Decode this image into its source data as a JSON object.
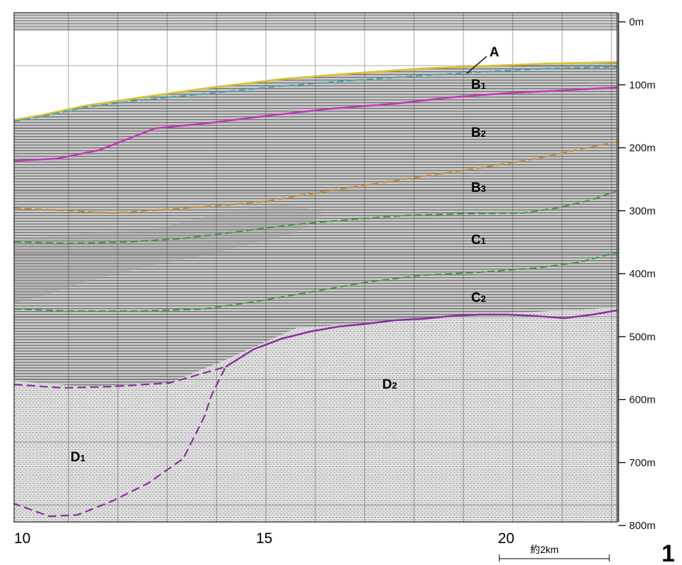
{
  "depth_axis": {
    "ticks": [
      "0m",
      "100m",
      "200m",
      "300m",
      "400m",
      "500m",
      "600m",
      "700m",
      "800m"
    ]
  },
  "distance_axis": {
    "ticks": [
      "10",
      "15",
      "20"
    ]
  },
  "scale_bar": {
    "label": "約2km"
  },
  "figure_number": "1",
  "layers": [
    {
      "main": "A",
      "sub": ""
    },
    {
      "main": "B",
      "sub": "1"
    },
    {
      "main": "B",
      "sub": "2"
    },
    {
      "main": "B",
      "sub": "3"
    },
    {
      "main": "C",
      "sub": "1"
    },
    {
      "main": "C",
      "sub": "2"
    },
    {
      "main": "D",
      "sub": "2"
    },
    {
      "main": "D",
      "sub": "1"
    }
  ],
  "horizons": [
    {
      "id": "seafloor-A",
      "color": "#d9c22a",
      "style": "solid"
    },
    {
      "id": "B1-base",
      "color": "#35a8b8",
      "style": "dashed"
    },
    {
      "id": "B2-top",
      "color": "#c236b8",
      "style": "solid"
    },
    {
      "id": "B3-top",
      "color": "#d08a2c",
      "style": "dashed"
    },
    {
      "id": "C1-top",
      "color": "#3a9a3a",
      "style": "dashed"
    },
    {
      "id": "C2-top",
      "color": "#3a9a3a",
      "style": "dashed"
    },
    {
      "id": "D-top",
      "color": "#8a2fa0",
      "style": "solid"
    },
    {
      "id": "D1-D2-boundary",
      "color": "#8a2fa0",
      "style": "dashed"
    }
  ]
}
